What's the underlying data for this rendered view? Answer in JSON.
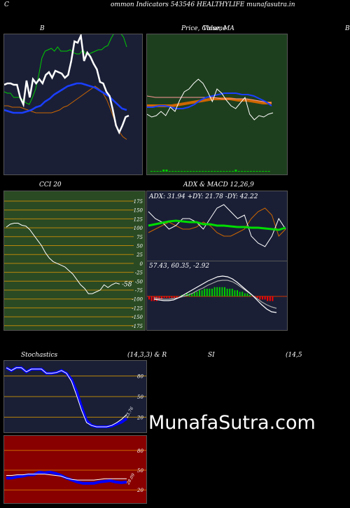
{
  "header": {
    "left_char": "C",
    "title": "ommon  Indicators 543546  HEALTHYLIFE munafasutra.in",
    "right_char": "B"
  },
  "watermark": "MunafaSutra.com",
  "colors": {
    "bg": "#000000",
    "navy": "#1a1f36",
    "green_bg": "#1e3f1e",
    "cci_bg": "#2a4a23",
    "stoch_bg": "#1a1f36",
    "rsi_bg": "#880000",
    "orange": "#cc6600",
    "blue": "#0000ff",
    "green": "#00cc00"
  },
  "chart_data": [
    {
      "type": "line",
      "title": "B",
      "series": [
        {
          "color": "#ffffff",
          "values": [
            31,
            30,
            30,
            31,
            31,
            40,
            45,
            28,
            40,
            27,
            30,
            27,
            30,
            24,
            22,
            26,
            21,
            22,
            23,
            26,
            24,
            14,
            0,
            1,
            -4,
            14,
            8,
            11,
            16,
            20,
            29,
            30,
            36,
            39,
            49,
            60,
            65,
            60,
            54,
            53
          ]
        },
        {
          "color": "#00cc00",
          "values": [
            36,
            37,
            37,
            40,
            40,
            40,
            42,
            44,
            45,
            40,
            34,
            24,
            12,
            7,
            6,
            5,
            7,
            4,
            7,
            7,
            7,
            6,
            8,
            9,
            9,
            6,
            9,
            9,
            8,
            7,
            6,
            6,
            4,
            3,
            -2,
            -6,
            -8,
            -6,
            -3,
            4
          ]
        },
        {
          "color": "#1a3fff",
          "values": [
            49,
            50,
            51,
            51,
            51,
            50,
            49,
            47,
            46,
            43,
            41,
            38,
            36,
            34,
            32,
            31,
            30,
            30,
            31,
            32,
            33,
            35,
            37,
            39,
            42,
            45,
            48,
            49
          ]
        },
        {
          "color": "#cc6600",
          "values": [
            46,
            46,
            47,
            47,
            47,
            48,
            49,
            50,
            51,
            51,
            51,
            51,
            51,
            50,
            49,
            47,
            46,
            44,
            42,
            40,
            38,
            36,
            34,
            32,
            34,
            37,
            42,
            49,
            57,
            64,
            68,
            70
          ]
        }
      ]
    },
    {
      "type": "line",
      "title": "Price,  Close,  MA",
      "subtitle_overlap": "Volume",
      "series": [
        {
          "color": "#ffffff",
          "values": [
            52,
            54,
            53,
            50,
            53,
            47,
            50,
            42,
            36,
            34,
            30,
            27,
            30,
            36,
            43,
            34,
            37,
            42,
            46,
            48,
            44,
            40,
            52,
            56,
            53,
            54,
            52,
            51
          ]
        },
        {
          "color": "#1a3fff",
          "values": [
            47,
            47,
            46,
            46,
            47,
            48,
            48,
            47,
            45,
            42,
            40,
            39,
            38,
            37,
            37,
            37,
            38,
            38,
            39,
            41,
            43,
            46
          ]
        },
        {
          "color": "#ff9999",
          "values": [
            39,
            40,
            40,
            40,
            40,
            40,
            40,
            40,
            40,
            41,
            41,
            41,
            41,
            42,
            43,
            44
          ]
        },
        {
          "color": "#cc6600",
          "values": [
            46,
            46,
            46,
            46,
            45,
            44,
            43,
            42,
            41,
            41,
            41,
            42,
            42,
            43,
            44,
            44
          ]
        }
      ]
    },
    {
      "type": "line",
      "title": "CCI 20",
      "ylim": [
        -175,
        175
      ],
      "yticks": [
        "175",
        "150",
        "125",
        "100",
        "75",
        "50",
        "25",
        "0",
        "-25",
        "-50",
        "-75",
        "-100",
        "-125",
        "-150",
        "-175"
      ],
      "value_label": "-58",
      "series": [
        {
          "color": "#ffffff",
          "values": [
            102,
            110,
            113,
            113,
            107,
            105,
            95,
            80,
            65,
            50,
            30,
            15,
            5,
            0,
            -5,
            -10,
            -20,
            -30,
            -45,
            -60,
            -70,
            -85,
            -85,
            -80,
            -75,
            -60,
            -68,
            -60,
            -55,
            -58
          ]
        }
      ]
    },
    {
      "type": "line",
      "title": "ADX  & MACD 12,26,9",
      "readout": "ADX: 31.94  +DY: 21.78  -DY: 42.22",
      "series": [
        {
          "color": "#00dd00",
          "values": [
            50,
            52,
            54,
            56,
            57,
            56,
            55,
            55,
            52,
            52,
            50,
            50,
            49,
            48,
            48,
            47,
            47,
            46,
            45,
            44,
            47
          ]
        },
        {
          "color": "#ffffff",
          "values": [
            70,
            60,
            55,
            45,
            50,
            60,
            60,
            55,
            45,
            60,
            75,
            80,
            70,
            60,
            65,
            35,
            25,
            20,
            35,
            60,
            45
          ]
        },
        {
          "color": "#cc6600",
          "values": [
            40,
            45,
            50,
            55,
            50,
            45,
            45,
            48,
            55,
            50,
            40,
            35,
            35,
            40,
            45,
            60,
            70,
            75,
            65,
            35,
            45
          ]
        }
      ]
    },
    {
      "type": "bar",
      "title": "MACD",
      "readout": "57.43,  60.35,  -2.92",
      "histogram": [
        -2,
        -3,
        -3,
        -3,
        -2,
        -2,
        -1,
        -1,
        -1,
        -1,
        -1,
        -1,
        0,
        1,
        1,
        2,
        2,
        2,
        3,
        3,
        4,
        4,
        5,
        5,
        5,
        5,
        6,
        6,
        6,
        6,
        6,
        5,
        5,
        5,
        4,
        4,
        3,
        3,
        2,
        2,
        1,
        0,
        -1,
        -1,
        -2,
        -2,
        -2,
        -3,
        -3,
        -3
      ]
    },
    {
      "type": "line",
      "title": "Stochastics",
      "params": "(14,3,3) & R",
      "yticks": [
        "80",
        "50",
        "20"
      ],
      "value_label": "23.76",
      "series": [
        {
          "color": "#0000ff",
          "values": [
            92,
            88,
            92,
            92,
            86,
            90,
            90,
            90,
            84,
            84,
            85,
            88,
            84,
            75,
            58,
            35,
            15,
            8,
            6,
            6,
            6,
            7,
            10,
            13,
            18
          ]
        },
        {
          "color": "#ffffff",
          "values": [
            92,
            88,
            92,
            92,
            86,
            90,
            90,
            90,
            84,
            84,
            85,
            88,
            84,
            72,
            52,
            30,
            12,
            8,
            6,
            6,
            6,
            8,
            12,
            17,
            24
          ]
        }
      ]
    },
    {
      "type": "line",
      "title": "SI",
      "params": "(14,5",
      "yticks": [
        "80",
        "50",
        "20"
      ],
      "value_label": "28.09",
      "series": [
        {
          "color": "#0000ff",
          "values": [
            38,
            38,
            40,
            41,
            43,
            43,
            47,
            46,
            47,
            45,
            42,
            38,
            35,
            32,
            30,
            30,
            30,
            32,
            33,
            34,
            32,
            31,
            32
          ]
        },
        {
          "color": "#ffffff",
          "values": [
            42,
            42,
            43,
            43,
            44,
            44,
            44,
            44,
            43,
            42,
            41,
            38,
            36,
            35,
            35,
            35,
            35,
            36,
            37,
            37,
            37,
            37,
            37
          ]
        }
      ]
    }
  ]
}
